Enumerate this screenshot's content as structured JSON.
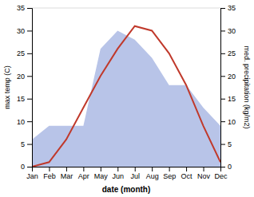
{
  "chart_data": {
    "type": "line",
    "x_label": "date (month)",
    "y_label": "max temp (C)",
    "y2_label": "med. precipitation (kg/m2)",
    "categories": [
      "Jan",
      "Feb",
      "Mar",
      "Apr",
      "May",
      "Jun",
      "Jul",
      "Aug",
      "Sep",
      "Oct",
      "Nov",
      "Dec"
    ],
    "series": [
      {
        "type": "area",
        "axis": "y2",
        "color": "#b8c4e8",
        "values": [
          6,
          9,
          9,
          9,
          26,
          30,
          28,
          24,
          18,
          18,
          13,
          9
        ]
      },
      {
        "type": "line",
        "color": "#c0392b",
        "values": [
          0,
          1,
          6,
          13,
          20,
          26,
          31,
          30,
          25,
          18,
          9,
          1
        ]
      }
    ],
    "ylim": [
      0,
      35
    ],
    "yticks": [
      0,
      5,
      10,
      15,
      20,
      25,
      30,
      35
    ],
    "y2lim": [
      0,
      35
    ],
    "y2ticks": [
      0,
      5,
      10,
      15,
      20,
      25,
      30,
      35
    ],
    "grid": false
  }
}
